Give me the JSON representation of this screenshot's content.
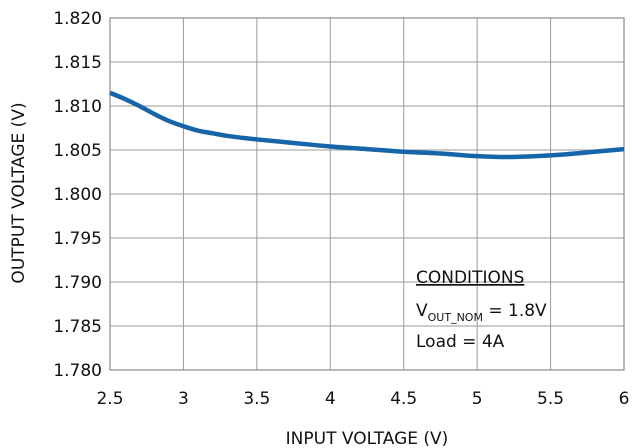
{
  "chart_data": {
    "type": "line",
    "title": "",
    "xlabel": "INPUT VOLTAGE (V)",
    "ylabel": "OUTPUT  VOLTAGE (V)",
    "xlim": [
      2.5,
      6
    ],
    "ylim": [
      1.78,
      1.82
    ],
    "x_ticks": [
      "2.5",
      "3",
      "3.5",
      "4",
      "4.5",
      "5",
      "5.5",
      "6"
    ],
    "y_ticks": [
      "1.780",
      "1.785",
      "1.790",
      "1.795",
      "1.800",
      "1.805",
      "1.810",
      "1.815",
      "1.820"
    ],
    "grid": true,
    "series": [
      {
        "color": "#1565a8",
        "x": [
          2.5,
          2.6,
          2.7,
          2.8,
          2.9,
          3.0,
          3.1,
          3.2,
          3.3,
          3.5,
          3.75,
          4.0,
          4.25,
          4.5,
          4.75,
          5.0,
          5.2,
          5.4,
          5.6,
          5.8,
          6.0
        ],
        "y": [
          1.8115,
          1.8108,
          1.81,
          1.8091,
          1.8083,
          1.8077,
          1.8072,
          1.8069,
          1.8066,
          1.8062,
          1.8058,
          1.8054,
          1.8051,
          1.8048,
          1.8046,
          1.8043,
          1.8042,
          1.8043,
          1.8045,
          1.8048,
          1.8051
        ]
      }
    ],
    "legend": {
      "title": "CONDITIONS",
      "line1_main": "V",
      "line1_sub": "OUT_NOM",
      "line1_rest": " = 1.8V",
      "line2": "Load = 4A"
    }
  }
}
